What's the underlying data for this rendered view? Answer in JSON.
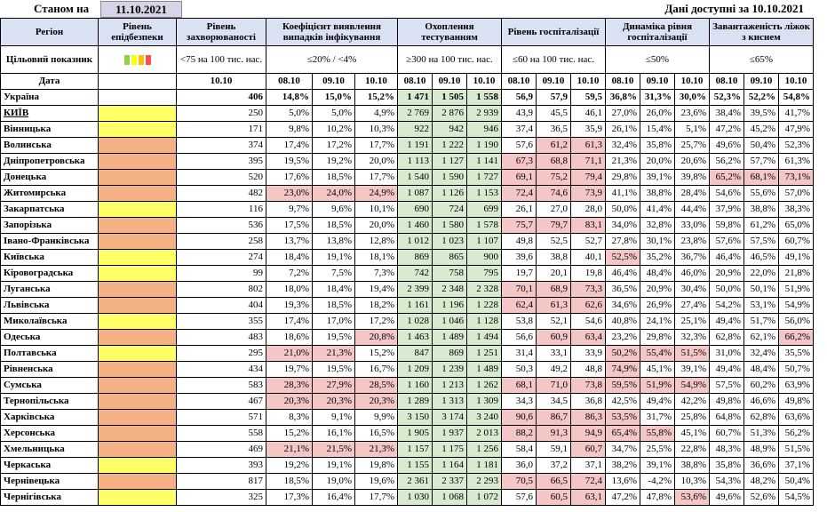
{
  "as_of_label": "Станом на",
  "as_of_date": "11.10.2021",
  "data_available": "Дані доступні за 10.10.2021",
  "headers": {
    "region": "Регіон",
    "epidemic_level": "Рівень епідбезпеки",
    "morbidity": "Рівень захворюваності",
    "detection": "Коефіцієнт виявлення випадків інфікування",
    "testing": "Охоплення тестуванням",
    "hospitalization": "Рівень госпіталізації",
    "hosp_dynamics": "Динаміка рівня госпіталізації",
    "oxygen_beds": "Завантаженість ліжок з киснем"
  },
  "targets": {
    "label": "Цільовий показник",
    "morbidity": "<75 на 100 тис. нас.",
    "detection": "≤20% / <4%",
    "testing": "≥300 на 100 тис. нас.",
    "hospitalization": "≤60 на 100 тис. нас.",
    "hosp_dynamics": "≤50%",
    "oxygen_beds": "≤65%"
  },
  "level_colors": [
    "#92d050",
    "#ffff00",
    "#ffc000",
    "#ff5050"
  ],
  "date_row": {
    "label": "Дата",
    "morbidity": "10.10",
    "d1": "08.10",
    "d2": "09.10",
    "d3": "10.10"
  },
  "rows": [
    {
      "region": "Україна",
      "level": "",
      "morb": "406",
      "det": [
        "14,8%",
        "15,0%",
        "15,2%"
      ],
      "test": [
        "1 471",
        "1 505",
        "1 558"
      ],
      "hosp": [
        "56,9",
        "57,9",
        "59,5"
      ],
      "dyn": [
        "36,8%",
        "31,3%",
        "30,0%"
      ],
      "oxy": [
        "52,3%",
        "52,2%",
        "54,8%"
      ]
    },
    {
      "region": "КИЇВ",
      "level": "y",
      "morb": "250",
      "det": [
        "5,0%",
        "5,0%",
        "4,9%"
      ],
      "test": [
        "2 769",
        "2 876",
        "2 939"
      ],
      "hosp": [
        "43,9",
        "45,5",
        "46,1"
      ],
      "dyn": [
        "27,0%",
        "26,0%",
        "23,6%"
      ],
      "oxy": [
        "38,4%",
        "39,5%",
        "41,7%"
      ]
    },
    {
      "region": "Вінницька",
      "level": "y",
      "morb": "171",
      "det": [
        "9,8%",
        "10,2%",
        "10,3%"
      ],
      "test": [
        "922",
        "942",
        "946"
      ],
      "hosp": [
        "37,4",
        "36,5",
        "35,9"
      ],
      "dyn": [
        "26,1%",
        "15,4%",
        "5,1%"
      ],
      "oxy": [
        "47,2%",
        "45,2%",
        "47,9%"
      ]
    },
    {
      "region": "Волинська",
      "level": "o",
      "morb": "374",
      "det": [
        "17,4%",
        "17,2%",
        "17,7%"
      ],
      "test": [
        "1 191",
        "1 222",
        "1 190"
      ],
      "hosp": [
        "57,6",
        "61,2",
        "61,3"
      ],
      "dyn": [
        "32,4%",
        "35,8%",
        "25,7%"
      ],
      "oxy": [
        "49,6%",
        "50,4%",
        "52,3%"
      ]
    },
    {
      "region": "Дніпропетровська",
      "level": "o",
      "morb": "395",
      "det": [
        "19,5%",
        "19,2%",
        "20,0%"
      ],
      "test": [
        "1 113",
        "1 127",
        "1 141"
      ],
      "hosp": [
        "67,3",
        "68,8",
        "71,1"
      ],
      "dyn": [
        "21,3%",
        "20,0%",
        "20,6%"
      ],
      "oxy": [
        "56,2%",
        "57,7%",
        "61,3%"
      ]
    },
    {
      "region": "Донецька",
      "level": "o",
      "morb": "520",
      "det": [
        "17,6%",
        "18,5%",
        "17,7%"
      ],
      "test": [
        "1 540",
        "1 590",
        "1 727"
      ],
      "hosp": [
        "69,1",
        "75,2",
        "79,4"
      ],
      "dyn": [
        "29,8%",
        "39,1%",
        "39,8%"
      ],
      "oxy": [
        "65,2%",
        "68,1%",
        "73,1%"
      ]
    },
    {
      "region": "Житомирська",
      "level": "o",
      "morb": "482",
      "det": [
        "23,0%",
        "24,0%",
        "24,9%"
      ],
      "test": [
        "1 087",
        "1 126",
        "1 153"
      ],
      "hosp": [
        "72,4",
        "74,6",
        "73,9"
      ],
      "dyn": [
        "41,1%",
        "38,8%",
        "28,4%"
      ],
      "oxy": [
        "54,6%",
        "55,6%",
        "57,0%"
      ]
    },
    {
      "region": "Закарпатська",
      "level": "y",
      "morb": "116",
      "det": [
        "9,7%",
        "9,6%",
        "10,1%"
      ],
      "test": [
        "690",
        "724",
        "699"
      ],
      "hosp": [
        "26,1",
        "27,0",
        "28,0"
      ],
      "dyn": [
        "50,0%",
        "41,4%",
        "44,4%"
      ],
      "oxy": [
        "37,9%",
        "38,8%",
        "38,3%"
      ]
    },
    {
      "region": "Запорізька",
      "level": "o",
      "morb": "536",
      "det": [
        "17,5%",
        "18,5%",
        "20,0%"
      ],
      "test": [
        "1 460",
        "1 580",
        "1 578"
      ],
      "hosp": [
        "75,7",
        "79,7",
        "83,1"
      ],
      "dyn": [
        "34,0%",
        "32,8%",
        "33,0%"
      ],
      "oxy": [
        "59,8%",
        "61,2%",
        "65,0%"
      ]
    },
    {
      "region": "Івано-Франківська",
      "level": "o",
      "morb": "258",
      "det": [
        "13,7%",
        "13,8%",
        "12,8%"
      ],
      "test": [
        "1 012",
        "1 023",
        "1 107"
      ],
      "hosp": [
        "49,8",
        "52,5",
        "52,7"
      ],
      "dyn": [
        "27,8%",
        "30,1%",
        "23,8%"
      ],
      "oxy": [
        "57,6%",
        "57,5%",
        "60,7%"
      ]
    },
    {
      "region": "Київська",
      "level": "y",
      "morb": "274",
      "det": [
        "18,4%",
        "19,1%",
        "18,1%"
      ],
      "test": [
        "869",
        "865",
        "900"
      ],
      "hosp": [
        "39,6",
        "38,8",
        "40,1"
      ],
      "dyn": [
        "52,5%",
        "35,2%",
        "36,7%"
      ],
      "oxy": [
        "46,4%",
        "46,5%",
        "49,1%"
      ]
    },
    {
      "region": "Кіровоградська",
      "level": "y",
      "morb": "99",
      "det": [
        "7,2%",
        "7,5%",
        "7,3%"
      ],
      "test": [
        "742",
        "758",
        "795"
      ],
      "hosp": [
        "19,7",
        "20,1",
        "19,8"
      ],
      "dyn": [
        "46,4%",
        "48,4%",
        "46,0%"
      ],
      "oxy": [
        "20,9%",
        "22,0%",
        "21,8%"
      ]
    },
    {
      "region": "Луганська",
      "level": "o",
      "morb": "802",
      "det": [
        "18,0%",
        "18,4%",
        "19,4%"
      ],
      "test": [
        "2 399",
        "2 348",
        "2 328"
      ],
      "hosp": [
        "70,1",
        "68,9",
        "73,3"
      ],
      "dyn": [
        "36,5%",
        "20,9%",
        "30,4%"
      ],
      "oxy": [
        "50,0%",
        "50,1%",
        "51,9%"
      ]
    },
    {
      "region": "Львівська",
      "level": "o",
      "morb": "404",
      "det": [
        "19,3%",
        "18,5%",
        "18,2%"
      ],
      "test": [
        "1 161",
        "1 196",
        "1 228"
      ],
      "hosp": [
        "62,4",
        "61,3",
        "62,6"
      ],
      "dyn": [
        "34,6%",
        "26,9%",
        "27,4%"
      ],
      "oxy": [
        "54,2%",
        "53,1%",
        "54,9%"
      ]
    },
    {
      "region": "Миколаївська",
      "level": "y",
      "morb": "355",
      "det": [
        "17,4%",
        "17,0%",
        "17,2%"
      ],
      "test": [
        "1 028",
        "1 046",
        "1 128"
      ],
      "hosp": [
        "53,8",
        "52,1",
        "54,6"
      ],
      "dyn": [
        "40,8%",
        "24,1%",
        "25,1%"
      ],
      "oxy": [
        "49,4%",
        "51,7%",
        "56,0%"
      ]
    },
    {
      "region": "Одеська",
      "level": "o",
      "morb": "483",
      "det": [
        "18,6%",
        "19,5%",
        "20,8%"
      ],
      "test": [
        "1 463",
        "1 489",
        "1 494"
      ],
      "hosp": [
        "56,6",
        "60,9",
        "63,4"
      ],
      "dyn": [
        "23,2%",
        "29,8%",
        "32,3%"
      ],
      "oxy": [
        "62,8%",
        "62,1%",
        "66,2%"
      ]
    },
    {
      "region": "Полтавська",
      "level": "y",
      "morb": "295",
      "det": [
        "21,0%",
        "21,3%",
        "15,2%"
      ],
      "test": [
        "847",
        "869",
        "1 251"
      ],
      "hosp": [
        "31,4",
        "33,1",
        "33,9"
      ],
      "dyn": [
        "50,2%",
        "55,4%",
        "51,5%"
      ],
      "oxy": [
        "31,0%",
        "32,4%",
        "35,5%"
      ]
    },
    {
      "region": "Рівненська",
      "level": "o",
      "morb": "434",
      "det": [
        "19,7%",
        "19,5%",
        "16,7%"
      ],
      "test": [
        "1 209",
        "1 239",
        "1 489"
      ],
      "hosp": [
        "50,3",
        "49,2",
        "48,8"
      ],
      "dyn": [
        "74,9%",
        "45,1%",
        "39,1%"
      ],
      "oxy": [
        "49,4%",
        "48,4%",
        "50,7%"
      ]
    },
    {
      "region": "Сумська",
      "level": "o",
      "morb": "583",
      "det": [
        "28,3%",
        "27,9%",
        "28,5%"
      ],
      "test": [
        "1 160",
        "1 213",
        "1 262"
      ],
      "hosp": [
        "68,1",
        "71,0",
        "73,8"
      ],
      "dyn": [
        "59,5%",
        "51,9%",
        "54,9%"
      ],
      "oxy": [
        "57,5%",
        "60,2%",
        "63,9%"
      ]
    },
    {
      "region": "Тернопільська",
      "level": "o",
      "morb": "467",
      "det": [
        "20,3%",
        "20,3%",
        "20,3%"
      ],
      "test": [
        "1 289",
        "1 313",
        "1 309"
      ],
      "hosp": [
        "34,3",
        "34,5",
        "36,8"
      ],
      "dyn": [
        "42,5%",
        "49,4%",
        "42,2%"
      ],
      "oxy": [
        "49,8%",
        "46,6%",
        "49,8%"
      ]
    },
    {
      "region": "Харківська",
      "level": "o",
      "morb": "571",
      "det": [
        "8,3%",
        "9,1%",
        "9,9%"
      ],
      "test": [
        "3 150",
        "3 174",
        "3 240"
      ],
      "hosp": [
        "90,6",
        "86,7",
        "86,3"
      ],
      "dyn": [
        "53,5%",
        "31,7%",
        "25,8%"
      ],
      "oxy": [
        "64,8%",
        "62,8%",
        "63,6%"
      ]
    },
    {
      "region": "Херсонська",
      "level": "o",
      "morb": "558",
      "det": [
        "15,2%",
        "16,1%",
        "16,5%"
      ],
      "test": [
        "1 905",
        "1 937",
        "2 013"
      ],
      "hosp": [
        "88,2",
        "91,3",
        "94,9"
      ],
      "dyn": [
        "65,4%",
        "55,8%",
        "45,1%"
      ],
      "oxy": [
        "60,7%",
        "51,3%",
        "56,2%"
      ]
    },
    {
      "region": "Хмельницька",
      "level": "o",
      "morb": "469",
      "det": [
        "21,1%",
        "21,5%",
        "21,3%"
      ],
      "test": [
        "1 157",
        "1 175",
        "1 256"
      ],
      "hosp": [
        "58,4",
        "59,1",
        "60,7"
      ],
      "dyn": [
        "34,7%",
        "25,5%",
        "22,8%"
      ],
      "oxy": [
        "48,3%",
        "48,9%",
        "51,5%"
      ]
    },
    {
      "region": "Черкаська",
      "level": "y",
      "morb": "393",
      "det": [
        "19,2%",
        "19,1%",
        "19,8%"
      ],
      "test": [
        "1 155",
        "1 164",
        "1 181"
      ],
      "hosp": [
        "36,0",
        "37,2",
        "37,1"
      ],
      "dyn": [
        "38,2%",
        "39,1%",
        "38,8%"
      ],
      "oxy": [
        "35,8%",
        "36,6%",
        "37,1%"
      ]
    },
    {
      "region": "Чернівецька",
      "level": "o",
      "morb": "817",
      "det": [
        "18,5%",
        "19,0%",
        "19,6%"
      ],
      "test": [
        "2 361",
        "2 337",
        "2 293"
      ],
      "hosp": [
        "70,5",
        "66,5",
        "72,4"
      ],
      "dyn": [
        "13,6%",
        "-4,2%",
        "10,3%"
      ],
      "oxy": [
        "54,3%",
        "48,2%",
        "50,4%"
      ]
    },
    {
      "region": "Чернігівська",
      "level": "y",
      "morb": "325",
      "det": [
        "17,3%",
        "16,4%",
        "17,7%"
      ],
      "test": [
        "1 030",
        "1 068",
        "1 072"
      ],
      "hosp": [
        "57,6",
        "60,5",
        "63,1"
      ],
      "dyn": [
        "47,2%",
        "47,8%",
        "53,6%"
      ],
      "oxy": [
        "49,6%",
        "52,6%",
        "54,5%"
      ]
    }
  ]
}
